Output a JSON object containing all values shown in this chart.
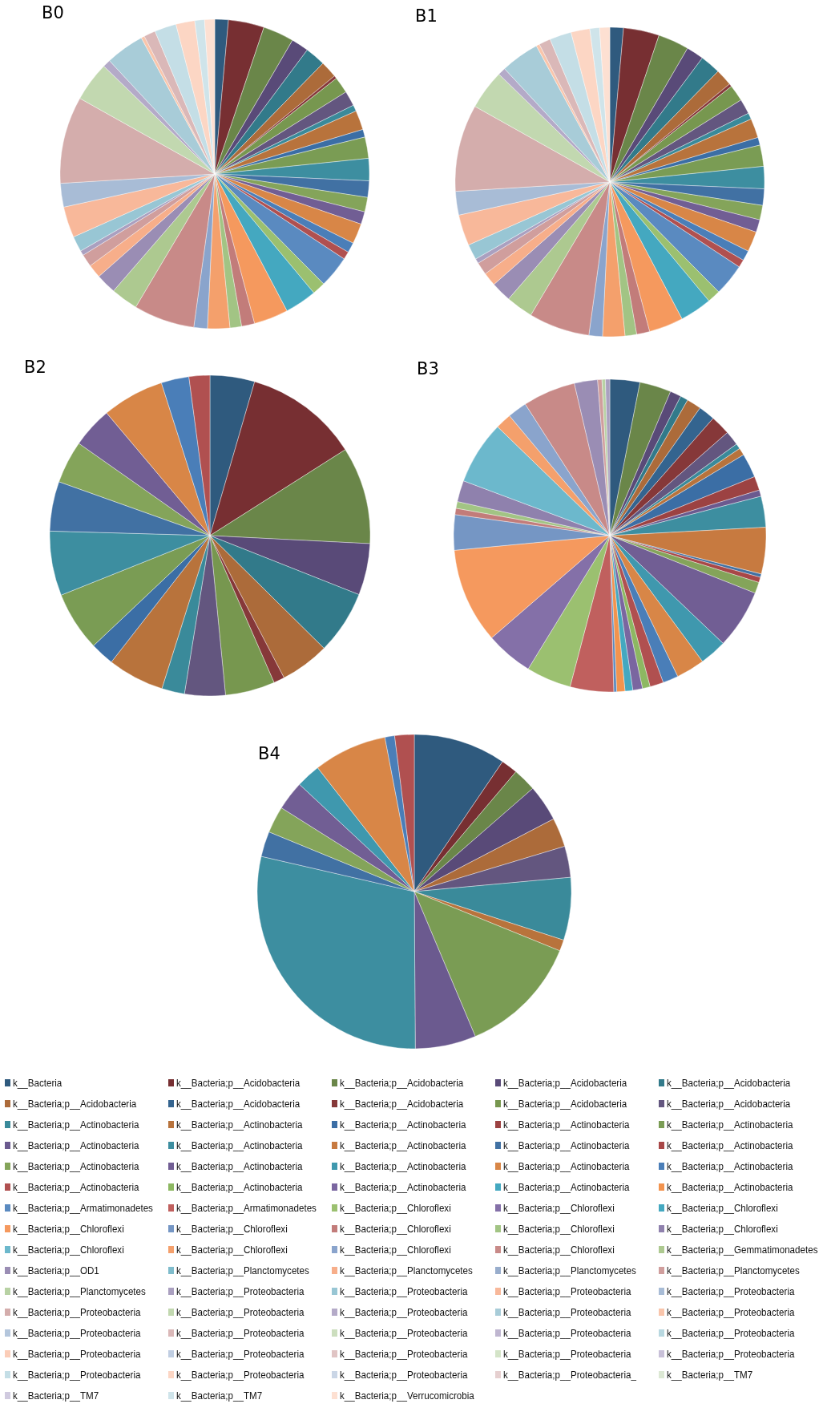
{
  "chart_data": {
    "type": "pie",
    "legend": "bottom",
    "categories": [
      "k__Bacteria",
      "k__Bacteria;p__Acidobacteria",
      "k__Bacteria;p__Acidobacteria",
      "k__Bacteria;p__Acidobacteria",
      "k__Bacteria;p__Acidobacteria",
      "k__Bacteria;p__Acidobacteria",
      "k__Bacteria;p__Acidobacteria",
      "k__Bacteria;p__Acidobacteria",
      "k__Bacteria;p__Acidobacteria",
      "k__Bacteria;p__Acidobacteria",
      "k__Bacteria;p__Actinobacteria",
      "k__Bacteria;p__Actinobacteria",
      "k__Bacteria;p__Actinobacteria",
      "k__Bacteria;p__Actinobacteria",
      "k__Bacteria;p__Actinobacteria",
      "k__Bacteria;p__Actinobacteria",
      "k__Bacteria;p__Actinobacteria",
      "k__Bacteria;p__Actinobacteria",
      "k__Bacteria;p__Actinobacteria",
      "k__Bacteria;p__Actinobacteria",
      "k__Bacteria;p__Actinobacteria",
      "k__Bacteria;p__Actinobacteria",
      "k__Bacteria;p__Actinobacteria",
      "k__Bacteria;p__Actinobacteria",
      "k__Bacteria;p__Actinobacteria",
      "k__Bacteria;p__Actinobacteria",
      "k__Bacteria;p__Actinobacteria",
      "k__Bacteria;p__Actinobacteria",
      "k__Bacteria;p__Actinobacteria",
      "k__Bacteria;p__Actinobacteria",
      "k__Bacteria;p__Armatimonadetes",
      "k__Bacteria;p__Armatimonadetes",
      "k__Bacteria;p__Chloroflexi",
      "k__Bacteria;p__Chloroflexi",
      "k__Bacteria;p__Chloroflexi",
      "k__Bacteria;p__Chloroflexi",
      "k__Bacteria;p__Chloroflexi",
      "k__Bacteria;p__Chloroflexi",
      "k__Bacteria;p__Chloroflexi",
      "k__Bacteria;p__Chloroflexi",
      "k__Bacteria;p__Chloroflexi",
      "k__Bacteria;p__Chloroflexi",
      "k__Bacteria;p__Chloroflexi",
      "k__Bacteria;p__Chloroflexi",
      "k__Bacteria;p__Gemmatimonadetes",
      "k__Bacteria;p__OD1",
      "k__Bacteria;p__Planctomycetes",
      "k__Bacteria;p__Planctomycetes",
      "k__Bacteria;p__Planctomycetes",
      "k__Bacteria;p__Planctomycetes",
      "k__Bacteria;p__Planctomycetes",
      "k__Bacteria;p__Proteobacteria",
      "k__Bacteria;p__Proteobacteria",
      "k__Bacteria;p__Proteobacteria",
      "k__Bacteria;p__Proteobacteria",
      "k__Bacteria;p__Proteobacteria",
      "k__Bacteria;p__Proteobacteria",
      "k__Bacteria;p__Proteobacteria",
      "k__Bacteria;p__Proteobacteria",
      "k__Bacteria;p__Proteobacteria",
      "k__Bacteria;p__Proteobacteria",
      "k__Bacteria;p__Proteobacteria",
      "k__Bacteria;p__Proteobacteria",
      "k__Bacteria;p__Proteobacteria",
      "k__Bacteria;p__Proteobacteria",
      "k__Bacteria;p__Proteobacteria",
      "k__Bacteria;p__Proteobacteria",
      "k__Bacteria;p__Proteobacteria",
      "k__Bacteria;p__Proteobacteria",
      "k__Bacteria;p__Proteobacteria",
      "k__Bacteria;p__Proteobacteria",
      "k__Bacteria;p__Proteobacteria",
      "k__Bacteria;p__Proteobacteria",
      "k__Bacteria;p__Proteobacteria_",
      "k__Bacteria;p__TM7",
      "k__Bacteria;p__TM7",
      "k__Bacteria;p__TM7",
      "k__Bacteria;p__Verrucomicrobia"
    ],
    "colors": [
      "#2f5a7e",
      "#772f32",
      "#6a8649",
      "#594a78",
      "#327a8a",
      "#ac6b3a",
      "#34648f",
      "#863839",
      "#77974f",
      "#63567f",
      "#3a8a9a",
      "#b8733c",
      "#3b6ea5",
      "#9c4242",
      "#7a9c54",
      "#6b5a8f",
      "#3d8ea0",
      "#c77a40",
      "#4171a3",
      "#a84747",
      "#84a45a",
      "#715e94",
      "#3f98ae",
      "#d88647",
      "#4a7eb8",
      "#b05050",
      "#8db862",
      "#7a66a0",
      "#44a8c0",
      "#f2934e",
      "#5a8ac0",
      "#c0605e",
      "#9bc070",
      "#8470a8",
      "#44a8c0",
      "#f5995e",
      "#7596c4",
      "#c27c7a",
      "#a2c484",
      "#8f81ad",
      "#6cb8cc",
      "#f4a06c",
      "#8aa4cc",
      "#c88a88",
      "#adc990",
      "#9a8db4",
      "#7fbccc",
      "#f7ae8a",
      "#98adcc",
      "#d09e9d",
      "#b8d2a4",
      "#aaa0c0",
      "#98c6d4",
      "#f8b89a",
      "#a8bcd6",
      "#d4adac",
      "#c2d8b0",
      "#b4aac8",
      "#a8ccd8",
      "#f9c5ab",
      "#b4c6dc",
      "#dab8b8",
      "#ccdebe",
      "#bfb6d0",
      "#b8d8e0",
      "#fbcdb8",
      "#c0cee2",
      "#e0c4c4",
      "#d4e4c8",
      "#c8c0d8",
      "#c4dee6",
      "#fcd6c4",
      "#cad6e6",
      "#e6d0d0",
      "#dce8d4",
      "#d0cadf",
      "#cfe4ea",
      "#fde0d2"
    ],
    "series": [
      {
        "name": "B0",
        "values": [
          1.4,
          3.7,
          3.2,
          1.8,
          2.1,
          1.75,
          0,
          0.3,
          1.7,
          1.55,
          0.65,
          2.0,
          0.8,
          0,
          2.2,
          0,
          2.3,
          0,
          1.7,
          0,
          1.5,
          1.3,
          0,
          2.1,
          1.05,
          0.8,
          0,
          0,
          0,
          0,
          3.3,
          0,
          1.35,
          0,
          3.3,
          3.55,
          0,
          1.35,
          1.2,
          0,
          0,
          2.3,
          1.4,
          6.3,
          2.8,
          2.1,
          0,
          1.4,
          0,
          1.3,
          0,
          0.5,
          1.6,
          3.2,
          2.45,
          9.0,
          4.1,
          0.8,
          4.0,
          0.35,
          0,
          1.2,
          0,
          0,
          0,
          0,
          0,
          0,
          0,
          0,
          2.25,
          1.95,
          0,
          0,
          0,
          0,
          1.0,
          1.05
        ]
      },
      {
        "name": "B1",
        "values": [
          1.4,
          3.7,
          3.2,
          1.8,
          2.1,
          1.75,
          0,
          0.3,
          1.7,
          1.55,
          0.65,
          2.0,
          0.8,
          0,
          2.2,
          0,
          2.3,
          0,
          1.7,
          0,
          1.5,
          1.3,
          0,
          2.1,
          1.05,
          0.8,
          0,
          0,
          0,
          0,
          3.3,
          0,
          1.35,
          0,
          3.3,
          3.55,
          0,
          1.35,
          1.2,
          0,
          0,
          2.3,
          1.4,
          6.3,
          2.8,
          2.1,
          0,
          1.4,
          0,
          1.3,
          0,
          0.5,
          1.6,
          3.2,
          2.45,
          9.0,
          4.1,
          0.8,
          4.0,
          0.35,
          0,
          1.2,
          0,
          0,
          0,
          0,
          0,
          0,
          0,
          0,
          2.25,
          1.95,
          0,
          0,
          0,
          0,
          1.0,
          1.05
        ]
      },
      {
        "name": "B2",
        "values": [
          4.5,
          11.5,
          9.8,
          5.2,
          6.4,
          4.95,
          0,
          1.1,
          5.0,
          4.1,
          2.3,
          5.7,
          2.4,
          0,
          6.0,
          0,
          6.5,
          0,
          5.0,
          0,
          4.3,
          4.1,
          0,
          6.25,
          2.8,
          2.1,
          0,
          0,
          0,
          0,
          0,
          0,
          0,
          0,
          0,
          0,
          0,
          0,
          0,
          0,
          0,
          0,
          0,
          0,
          0,
          0,
          0,
          0,
          0,
          0,
          0,
          0,
          0,
          0,
          0,
          0,
          0,
          0,
          0,
          0,
          0,
          0,
          0,
          0,
          0,
          0,
          0,
          0,
          0,
          0,
          0,
          0,
          0,
          0,
          0,
          0,
          0,
          0
        ]
      },
      {
        "name": "B3",
        "values": [
          3.1,
          0,
          3.25,
          1.15,
          0.8,
          1.5,
          1.7,
          2.05,
          0,
          1.5,
          0.55,
          0.75,
          2.5,
          1.45,
          0,
          0.65,
          3.2,
          4.8,
          0.35,
          0.55,
          1.15,
          6.1,
          2.8,
          2.95,
          1.6,
          1.4,
          0.8,
          1.0,
          0.8,
          0.85,
          0.3,
          4.5,
          4.65,
          4.9,
          0,
          9.85,
          3.65,
          0.65,
          0.7,
          2.2,
          6.55,
          1.65,
          2.0,
          5.45,
          0,
          2.4,
          0,
          0,
          0,
          0.45,
          0.35,
          0.45,
          0,
          0,
          0,
          0,
          0,
          0,
          0,
          0,
          0,
          0,
          0,
          0,
          0,
          0,
          0,
          0,
          0,
          0,
          0,
          0,
          0,
          0,
          0,
          0,
          0,
          0
        ]
      },
      {
        "name": "B4",
        "values": [
          9.5,
          1.7,
          2.4,
          3.75,
          0,
          3.0,
          0,
          0,
          0,
          3.2,
          6.45,
          1.15,
          0,
          0,
          12.5,
          6.25,
          28.7,
          0,
          2.6,
          0,
          2.75,
          3.0,
          2.5,
          7.55,
          1.0,
          2.0,
          0,
          0,
          0,
          0,
          0,
          0,
          0,
          0,
          0,
          0,
          0,
          0,
          0,
          0,
          0,
          0,
          0,
          0,
          0,
          0,
          0,
          0,
          0,
          0,
          0,
          0,
          0,
          0,
          0,
          0,
          0,
          0,
          0,
          0,
          0,
          0,
          0,
          0,
          0,
          0,
          0,
          0,
          0,
          0,
          0,
          0,
          0,
          0,
          0,
          0,
          0,
          0
        ]
      }
    ]
  }
}
